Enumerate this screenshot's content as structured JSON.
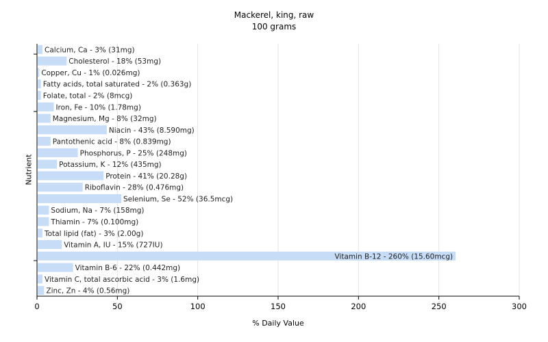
{
  "chart_data": {
    "type": "bar",
    "orientation": "horizontal",
    "title": "Mackerel, king, raw",
    "subtitle": "100 grams",
    "xlabel": "% Daily Value",
    "ylabel": "Nutrient",
    "xlim": [
      0,
      300
    ],
    "xticks": [
      0,
      50,
      100,
      150,
      200,
      250,
      300
    ],
    "grid": true,
    "bar_color": "#c6dcf7",
    "categories": [
      "Calcium, Ca",
      "Cholesterol",
      "Copper, Cu",
      "Fatty acids, total saturated",
      "Folate, total",
      "Iron, Fe",
      "Magnesium, Mg",
      "Niacin",
      "Pantothenic acid",
      "Phosphorus, P",
      "Potassium, K",
      "Protein",
      "Riboflavin",
      "Selenium, Se",
      "Sodium, Na",
      "Thiamin",
      "Total lipid (fat)",
      "Vitamin A, IU",
      "Vitamin B-12",
      "Vitamin B-6",
      "Vitamin C, total ascorbic acid",
      "Zinc, Zn"
    ],
    "values": [
      3,
      18,
      1,
      2,
      2,
      10,
      8,
      43,
      8,
      25,
      12,
      41,
      28,
      52,
      7,
      7,
      3,
      15,
      260,
      22,
      3,
      4
    ],
    "labels": [
      "Calcium, Ca - 3% (31mg)",
      "Cholesterol - 18% (53mg)",
      "Copper, Cu - 1% (0.026mg)",
      "Fatty acids, total saturated - 2% (0.363g)",
      "Folate, total - 2% (8mcg)",
      "Iron, Fe - 10% (1.78mg)",
      "Magnesium, Mg - 8% (32mg)",
      "Niacin - 43% (8.590mg)",
      "Pantothenic acid - 8% (0.839mg)",
      "Phosphorus, P - 25% (248mg)",
      "Potassium, K - 12% (435mg)",
      "Protein - 41% (20.28g)",
      "Riboflavin - 28% (0.476mg)",
      "Selenium, Se - 52% (36.5mcg)",
      "Sodium, Na - 7% (158mg)",
      "Thiamin - 7% (0.100mg)",
      "Total lipid (fat) - 3% (2.00g)",
      "Vitamin A, IU - 15% (727IU)",
      "Vitamin B-12 - 260% (15.60mcg)",
      "Vitamin B-6 - 22% (0.442mg)",
      "Vitamin C, total ascorbic acid - 3% (1.6mg)",
      "Zinc, Zn - 4% (0.56mg)"
    ]
  }
}
